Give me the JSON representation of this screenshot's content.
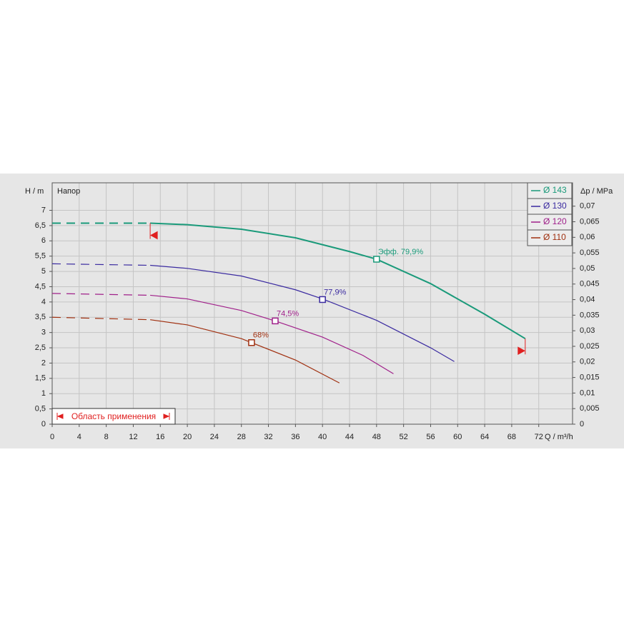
{
  "chart_data": {
    "type": "line",
    "y_label": "H / m",
    "y_title": "Напор",
    "y2_label": "Δp / MPa",
    "x_label": "Q / m³/h",
    "range_label": "Область применения",
    "application_range": [
      14.5,
      70
    ],
    "xlim": [
      0,
      77
    ],
    "xticks": [
      0,
      4,
      8,
      12,
      16,
      20,
      24,
      28,
      32,
      36,
      40,
      44,
      48,
      52,
      56,
      60,
      64,
      68,
      72
    ],
    "ylim": [
      0,
      7.9
    ],
    "yticks": [
      0,
      {
        "value": 0.5,
        "label": "0,5"
      },
      1,
      {
        "value": 1.5,
        "label": "1,5"
      },
      2,
      {
        "value": 2.5,
        "label": "2,5"
      },
      3,
      {
        "value": 3.5,
        "label": "3,5"
      },
      4,
      {
        "value": 4.5,
        "label": "4,5"
      },
      5,
      {
        "value": 5.5,
        "label": "5,5"
      },
      6,
      {
        "value": 6.5,
        "label": "6,5"
      },
      7
    ],
    "y2lim": [
      0,
      0.0775
    ],
    "y2ticks": [
      0,
      {
        "value": 0.005,
        "label": "0,005"
      },
      {
        "value": 0.01,
        "label": "0,01"
      },
      {
        "value": 0.015,
        "label": "0,015"
      },
      {
        "value": 0.02,
        "label": "0,02"
      },
      {
        "value": 0.025,
        "label": "0,025"
      },
      {
        "value": 0.03,
        "label": "0,03"
      },
      {
        "value": 0.035,
        "label": "0,035"
      },
      {
        "value": 0.04,
        "label": "0,04"
      },
      {
        "value": 0.045,
        "label": "0,045"
      },
      {
        "value": 0.05,
        "label": "0,05"
      },
      {
        "value": 0.055,
        "label": "0,055"
      },
      {
        "value": 0.06,
        "label": "0,06"
      },
      {
        "value": 0.065,
        "label": "0,065"
      },
      {
        "value": 0.07,
        "label": "0,07"
      }
    ],
    "grid": true,
    "series": [
      {
        "name": "Ø 143",
        "color": "#1a9a7a",
        "x": [
          0,
          14.5,
          20,
          28,
          36,
          44,
          48,
          56,
          64,
          70
        ],
        "values": [
          6.58,
          6.58,
          6.53,
          6.38,
          6.1,
          5.65,
          5.4,
          4.6,
          3.6,
          2.8
        ],
        "eff_point": {
          "x": 48,
          "y": 5.4,
          "label": "Эфф.  79,9%"
        }
      },
      {
        "name": "Ø 130",
        "color": "#3a2aa0",
        "x": [
          0,
          14.5,
          20,
          28,
          36,
          40,
          48,
          56,
          59.5
        ],
        "values": [
          5.25,
          5.2,
          5.1,
          4.85,
          4.4,
          4.1,
          3.4,
          2.5,
          2.05
        ],
        "eff_point": {
          "x": 40,
          "y": 4.08,
          "label": "77,9%"
        }
      },
      {
        "name": "Ø 120",
        "color": "#a0208a",
        "x": [
          0,
          14.5,
          20,
          28,
          33,
          40,
          46,
          50.5
        ],
        "values": [
          4.28,
          4.22,
          4.1,
          3.72,
          3.38,
          2.85,
          2.25,
          1.65
        ],
        "eff_point": {
          "x": 33,
          "y": 3.38,
          "label": "74,5%"
        }
      },
      {
        "name": "Ø 110",
        "color": "#a03010",
        "x": [
          0,
          14.5,
          20,
          28,
          29.5,
          36,
          42.5
        ],
        "values": [
          3.5,
          3.42,
          3.25,
          2.8,
          2.67,
          2.1,
          1.35
        ],
        "eff_point": {
          "x": 29.5,
          "y": 2.67,
          "label": "68%"
        }
      }
    ]
  }
}
